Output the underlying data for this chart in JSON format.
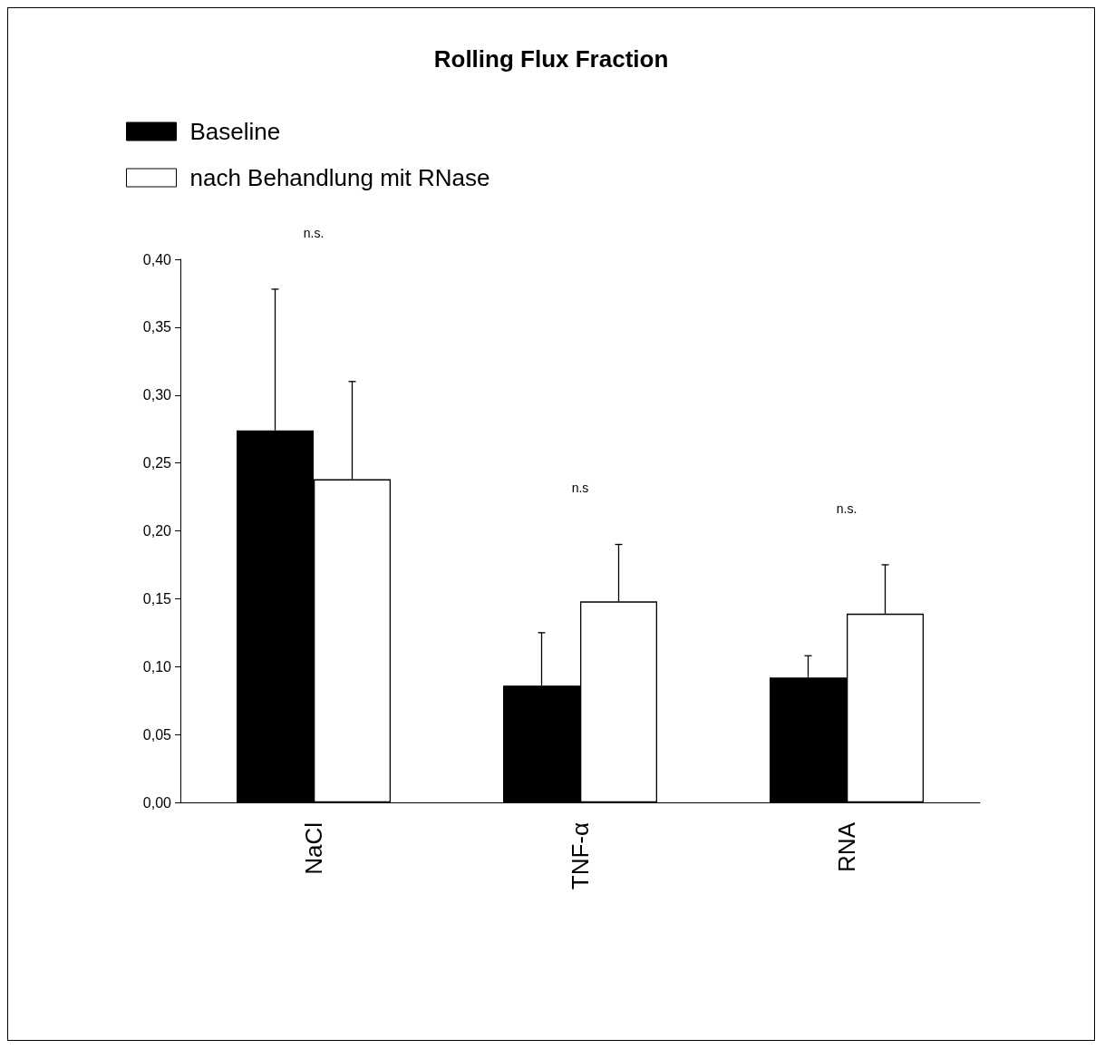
{
  "chart_data": {
    "type": "bar",
    "title": "Rolling Flux Fraction",
    "categories": [
      "NaCl",
      "TNF-α",
      "RNA"
    ],
    "series": [
      {
        "name": "Baseline",
        "color": "#000000",
        "values": [
          0.274,
          0.086,
          0.092
        ],
        "errors": [
          [
            0.274,
            0.378
          ],
          [
            0.086,
            0.125
          ],
          [
            0.092,
            0.108
          ]
        ]
      },
      {
        "name": "nach Behandlung mit RNase",
        "color": "#ffffff",
        "values": [
          0.238,
          0.148,
          0.139
        ],
        "errors": [
          [
            0.238,
            0.31
          ],
          [
            0.148,
            0.19
          ],
          [
            0.139,
            0.175
          ]
        ]
      }
    ],
    "ylim": [
      0,
      0.4
    ],
    "yticks": [
      {
        "value": 0,
        "label": "0,00"
      },
      {
        "value": 0.05,
        "label": "0,05"
      },
      {
        "value": 0.1,
        "label": "0,10"
      },
      {
        "value": 0.15,
        "label": "0,15"
      },
      {
        "value": 0.2,
        "label": "0,20"
      },
      {
        "value": 0.25,
        "label": "0,25"
      },
      {
        "value": 0.3,
        "label": "0,30"
      },
      {
        "value": 0.35,
        "label": "0,35"
      },
      {
        "value": 0.4,
        "label": "0,40"
      }
    ],
    "annotations": [
      "n.s.",
      "n.s",
      "n.s."
    ],
    "grid": false,
    "legend": "top left"
  }
}
